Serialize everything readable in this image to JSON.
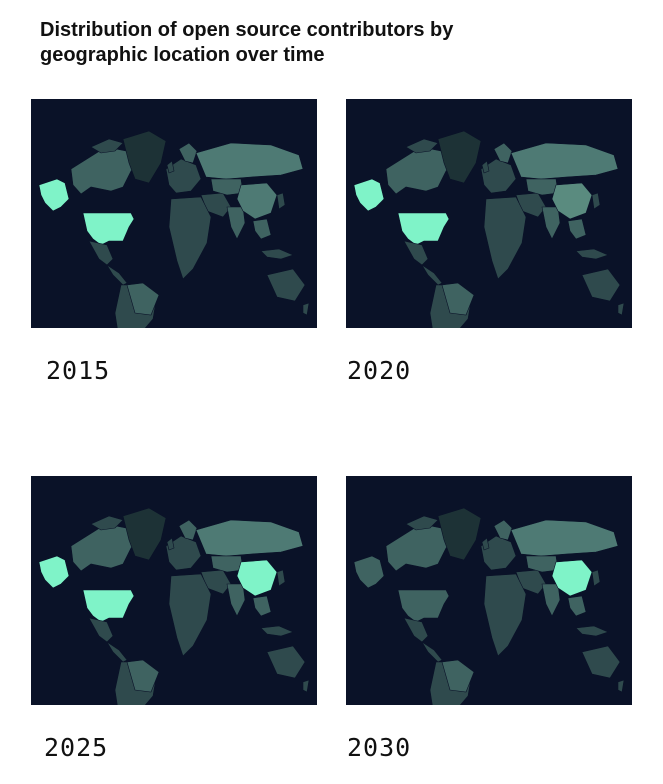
{
  "title": "Distribution of open source contributors by geographic location over time",
  "colors": {
    "background": "#0a1228",
    "low": "#2f4a4d",
    "mid": "#3f6361",
    "high": "#4e7a74",
    "highlight": "#7ff3c8",
    "greenland": "#1d3236"
  },
  "panels": [
    {
      "year": "2015",
      "highlights": [
        "usa",
        "alaska"
      ],
      "china_level": "high"
    },
    {
      "year": "2020",
      "highlights": [
        "usa",
        "alaska"
      ],
      "china_level": "lighter"
    },
    {
      "year": "2025",
      "highlights": [
        "usa",
        "alaska",
        "china"
      ],
      "china_level": "highlight"
    },
    {
      "year": "2030",
      "highlights": [
        "china"
      ],
      "china_level": "highlight"
    }
  ]
}
